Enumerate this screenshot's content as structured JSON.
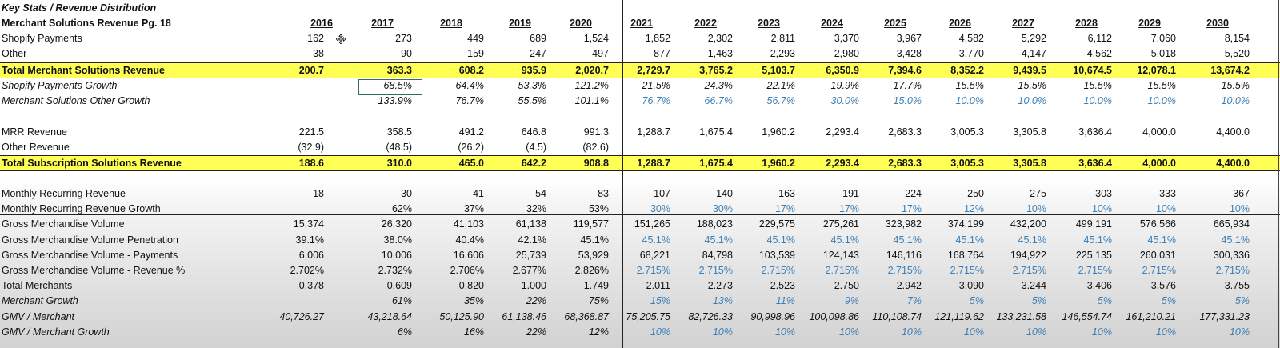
{
  "section_title": "Key Stats / Revenue Distribution",
  "header_label": "Merchant Solutions Revenue Pg. 18",
  "years": [
    "2016",
    "2017",
    "2018",
    "2019",
    "2020",
    "2021",
    "2022",
    "2023",
    "2024",
    "2025",
    "2026",
    "2027",
    "2028",
    "2029",
    "2030"
  ],
  "rows": [
    {
      "label": "Shopify Payments",
      "style": "normal",
      "values": [
        "162",
        "273",
        "449",
        "689",
        "1,524",
        "1,852",
        "2,302",
        "2,811",
        "3,370",
        "3,967",
        "4,582",
        "5,292",
        "6,112",
        "7,060",
        "8,154"
      ]
    },
    {
      "label": "Other",
      "style": "normal",
      "values": [
        "38",
        "90",
        "159",
        "247",
        "497",
        "877",
        "1,463",
        "2,293",
        "2,980",
        "3,428",
        "3,770",
        "4,147",
        "4,562",
        "5,018",
        "5,520"
      ]
    },
    {
      "label": "Total Merchant Solutions Revenue",
      "style": "total",
      "values": [
        "200.7",
        "363.3",
        "608.2",
        "935.9",
        "2,020.7",
        "2,729.7",
        "3,765.2",
        "5,103.7",
        "6,350.9",
        "7,394.6",
        "8,352.2",
        "9,439.5",
        "10,674.5",
        "12,078.1",
        "13,674.2"
      ]
    },
    {
      "label": "Shopify Payments Growth",
      "style": "italic",
      "values": [
        "",
        "68.5%",
        "64.4%",
        "53.3%",
        "121.2%",
        "21.5%",
        "24.3%",
        "22.1%",
        "19.9%",
        "17.7%",
        "15.5%",
        "15.5%",
        "15.5%",
        "15.5%",
        "15.5%"
      ]
    },
    {
      "label": "Merchant Solutions Other Growth",
      "style": "italic",
      "values": [
        "",
        "133.9%",
        "76.7%",
        "55.5%",
        "101.1%",
        "76.7%",
        "66.7%",
        "56.7%",
        "30.0%",
        "15.0%",
        "10.0%",
        "10.0%",
        "10.0%",
        "10.0%",
        "10.0%"
      ]
    },
    {
      "label": "",
      "style": "blank",
      "values": []
    },
    {
      "label": "MRR Revenue",
      "style": "normal",
      "values": [
        "221.5",
        "358.5",
        "491.2",
        "646.8",
        "991.3",
        "1,288.7",
        "1,675.4",
        "1,960.2",
        "2,293.4",
        "2,683.3",
        "3,005.3",
        "3,305.8",
        "3,636.4",
        "4,000.0",
        "4,400.0"
      ]
    },
    {
      "label": "Other Revenue",
      "style": "normal",
      "values": [
        "(32.9)",
        "(48.5)",
        "(26.2)",
        "(4.5)",
        "(82.6)",
        "",
        "",
        "",
        "",
        "",
        "",
        "",
        "",
        "",
        ""
      ]
    },
    {
      "label": "Total Subscription Solutions Revenue",
      "style": "total",
      "values": [
        "188.6",
        "310.0",
        "465.0",
        "642.2",
        "908.8",
        "1,288.7",
        "1,675.4",
        "1,960.2",
        "2,293.4",
        "2,683.3",
        "3,005.3",
        "3,305.8",
        "3,636.4",
        "4,000.0",
        "4,400.0"
      ]
    },
    {
      "label": "",
      "style": "blank",
      "values": []
    },
    {
      "label": "Monthly Recurring Revenue",
      "style": "normal",
      "values": [
        "18",
        "30",
        "41",
        "54",
        "83",
        "107",
        "140",
        "163",
        "191",
        "224",
        "250",
        "275",
        "303",
        "333",
        "367"
      ]
    },
    {
      "label": "Monthly Recurring Revenue Growth",
      "style": "normal",
      "values": [
        "",
        "62%",
        "37%",
        "32%",
        "53%",
        "30%",
        "30%",
        "17%",
        "17%",
        "17%",
        "12%",
        "10%",
        "10%",
        "10%",
        "10%"
      ]
    },
    {
      "label": "Gross Merchandise Volume",
      "style": "normal",
      "values": [
        "15,374",
        "26,320",
        "41,103",
        "61,138",
        "119,577",
        "151,265",
        "188,023",
        "229,575",
        "275,261",
        "323,982",
        "374,199",
        "432,200",
        "499,191",
        "576,566",
        "665,934"
      ]
    },
    {
      "label": "Gross Merchandise Volume Penetration",
      "style": "normal",
      "values": [
        "39.1%",
        "38.0%",
        "40.4%",
        "42.1%",
        "45.1%",
        "45.1%",
        "45.1%",
        "45.1%",
        "45.1%",
        "45.1%",
        "45.1%",
        "45.1%",
        "45.1%",
        "45.1%",
        "45.1%"
      ]
    },
    {
      "label": "Gross Merchandise Volume - Payments",
      "style": "normal",
      "values": [
        "6,006",
        "10,006",
        "16,606",
        "25,739",
        "53,929",
        "68,221",
        "84,798",
        "103,539",
        "124,143",
        "146,116",
        "168,764",
        "194,922",
        "225,135",
        "260,031",
        "300,336"
      ]
    },
    {
      "label": "Gross Merchandise Volume - Revenue %",
      "style": "normal",
      "values": [
        "2.702%",
        "2.732%",
        "2.706%",
        "2.677%",
        "2.826%",
        "2.715%",
        "2.715%",
        "2.715%",
        "2.715%",
        "2.715%",
        "2.715%",
        "2.715%",
        "2.715%",
        "2.715%",
        "2.715%"
      ]
    },
    {
      "label": "Total Merchants",
      "style": "normal",
      "values": [
        "0.378",
        "0.609",
        "0.820",
        "1.000",
        "1.749",
        "2.011",
        "2.273",
        "2.523",
        "2.750",
        "2.942",
        "3.090",
        "3.244",
        "3.406",
        "3.576",
        "3.755"
      ]
    },
    {
      "label": "Merchant Growth",
      "style": "italic",
      "values": [
        "",
        "61%",
        "35%",
        "22%",
        "75%",
        "15%",
        "13%",
        "11%",
        "9%",
        "7%",
        "5%",
        "5%",
        "5%",
        "5%",
        "5%"
      ]
    },
    {
      "label": "GMV / Merchant",
      "style": "italic",
      "values": [
        "40,726.27",
        "43,218.64",
        "50,125.90",
        "61,138.46",
        "68,368.87",
        "75,205.75",
        "82,726.33",
        "90,998.96",
        "100,098.86",
        "110,108.74",
        "121,119.62",
        "133,231.58",
        "146,554.74",
        "161,210.21",
        "177,331.23"
      ]
    },
    {
      "label": "GMV / Merchant Growth",
      "style": "italic",
      "values": [
        "",
        "6%",
        "16%",
        "22%",
        "12%",
        "10%",
        "10%",
        "10%",
        "10%",
        "10%",
        "10%",
        "10%",
        "10%",
        "10%",
        "10%"
      ]
    }
  ],
  "blue_cells": {
    "4": [
      5,
      6,
      7,
      8,
      9,
      10,
      11,
      12,
      13,
      14
    ],
    "11": [
      5,
      6,
      7,
      8,
      9,
      10,
      11,
      12,
      13,
      14
    ],
    "13": [
      5,
      6,
      7,
      8,
      9,
      10,
      11,
      12,
      13,
      14
    ],
    "15": [
      5,
      6,
      7,
      8,
      9,
      10,
      11,
      12,
      13,
      14
    ],
    "17": [
      5,
      6,
      7,
      8,
      9,
      10,
      11,
      12,
      13,
      14
    ],
    "19": [
      5,
      6,
      7,
      8,
      9,
      10,
      11,
      12,
      13,
      14
    ]
  },
  "colors": {
    "highlight": "#ffff55",
    "projection_blue": "#3d7fb5",
    "selection_border": "#2f6f55"
  },
  "cursor_icon": "move-cursor-icon"
}
